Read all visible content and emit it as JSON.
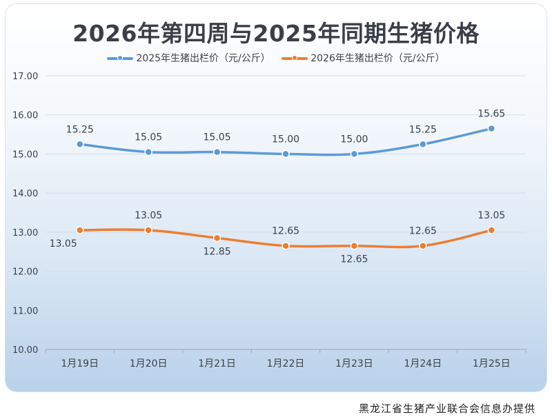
{
  "chart_data": {
    "type": "line",
    "title": "2026年第四周与2025年同期生猪价格",
    "categories": [
      "1月19日",
      "1月20日",
      "1月21日",
      "1月22日",
      "1月23日",
      "1月24日",
      "1月25日"
    ],
    "series": [
      {
        "name": "2025年生猪出栏价（元/公斤）",
        "color": "#5b9bd5",
        "values": [
          15.25,
          15.05,
          15.05,
          15.0,
          15.0,
          15.25,
          15.65
        ]
      },
      {
        "name": "2026年生猪出栏价（元/公斤）",
        "color": "#ed7d31",
        "values": [
          13.05,
          13.05,
          12.85,
          12.65,
          12.65,
          12.65,
          13.05
        ]
      }
    ],
    "ylim": [
      10,
      17
    ],
    "yticks": [
      "10.00",
      "11.00",
      "12.00",
      "13.00",
      "14.00",
      "15.00",
      "16.00",
      "17.00"
    ],
    "grid": true,
    "legend": "top-center",
    "xlabel": "",
    "ylabel": ""
  },
  "footer": "黑龙江省生猪产业联合会信息办提供"
}
